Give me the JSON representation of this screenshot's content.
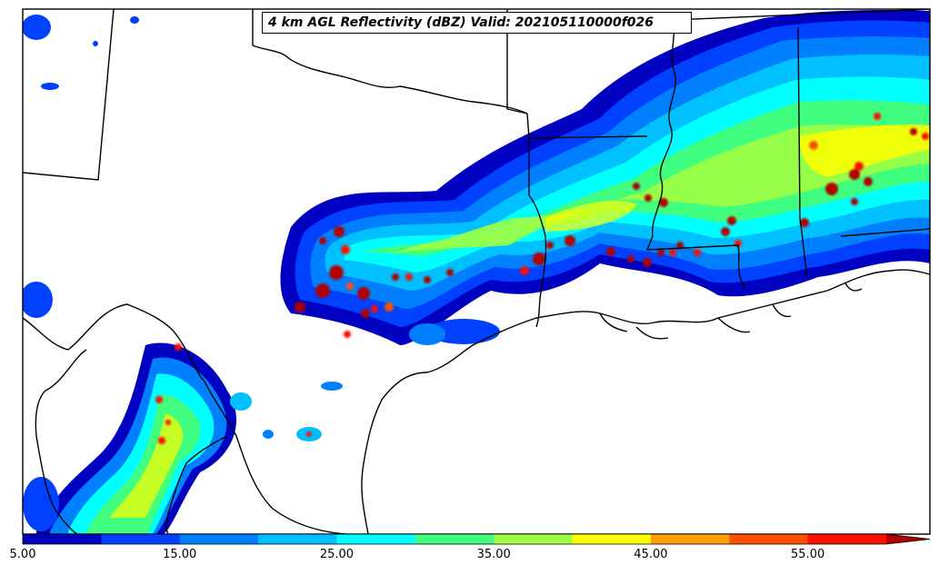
{
  "title": "4 km AGL Reflectivity (dBZ) Valid: 202105110000f026",
  "colorbar": {
    "min": 5,
    "max": 60,
    "extend": "max",
    "colors": [
      "#0000c0",
      "#0040ff",
      "#0080ff",
      "#00c0ff",
      "#00ffff",
      "#40ff80",
      "#a0ff40",
      "#ffff00",
      "#ffa000",
      "#ff5000",
      "#ff1000",
      "#b00000"
    ],
    "tick_labels": [
      "5.00",
      "15.00",
      "25.00",
      "35.00",
      "45.00",
      "55.00"
    ]
  }
}
